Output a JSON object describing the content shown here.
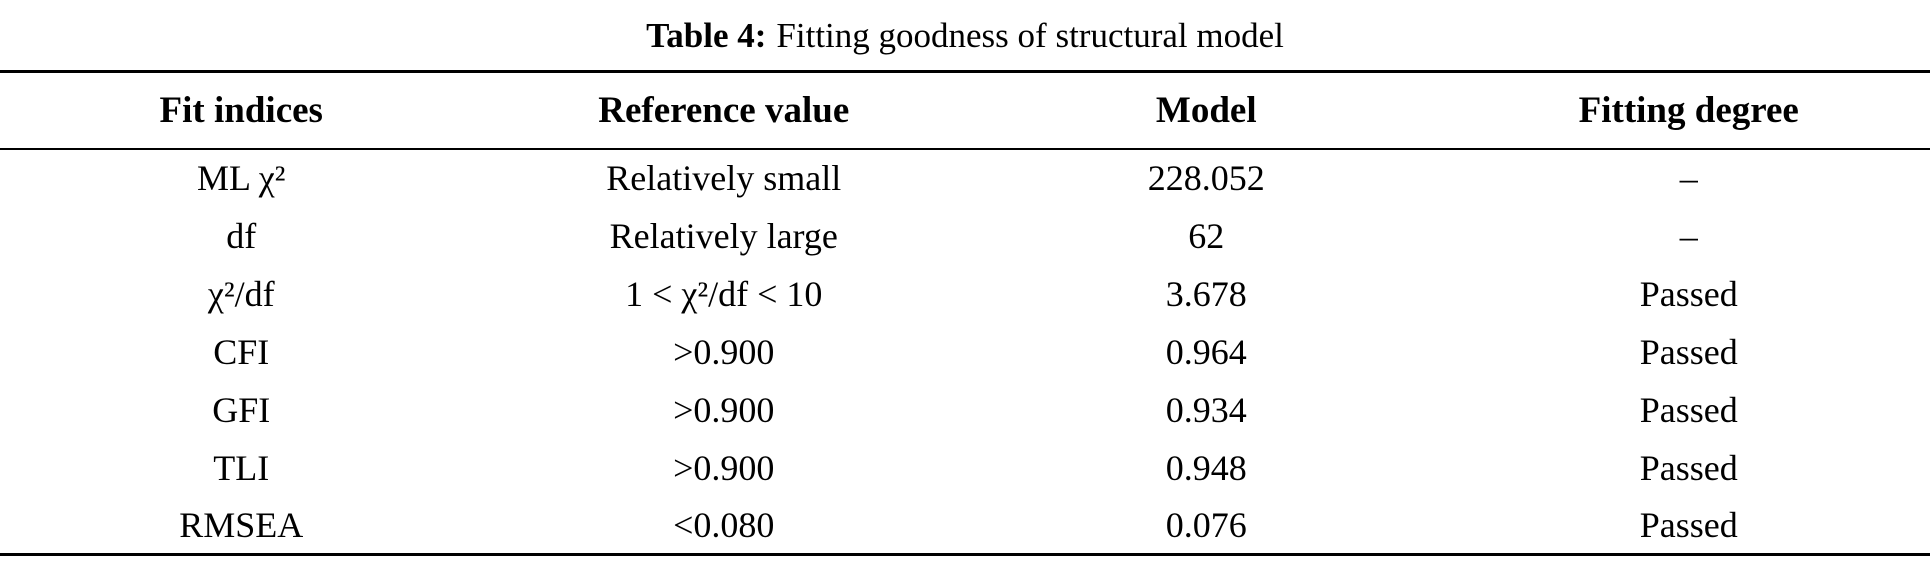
{
  "caption": {
    "label": "Table 4:",
    "title": "Fitting goodness of structural model"
  },
  "table": {
    "columns": [
      "Fit indices",
      "Reference value",
      "Model",
      "Fitting degree"
    ],
    "rows": [
      {
        "fit_index": "ML χ²",
        "reference_value": "Relatively small",
        "model": "228.052",
        "fitting_degree": "–"
      },
      {
        "fit_index": "df",
        "reference_value": "Relatively large",
        "model": "62",
        "fitting_degree": "–"
      },
      {
        "fit_index": "χ²/df",
        "reference_value": "1 < χ²/df < 10",
        "model": "3.678",
        "fitting_degree": "Passed"
      },
      {
        "fit_index": "CFI",
        "reference_value": ">0.900",
        "model": "0.964",
        "fitting_degree": "Passed"
      },
      {
        "fit_index": "GFI",
        "reference_value": ">0.900",
        "model": "0.934",
        "fitting_degree": "Passed"
      },
      {
        "fit_index": "TLI",
        "reference_value": ">0.900",
        "model": "0.948",
        "fitting_degree": "Passed"
      },
      {
        "fit_index": "RMSEA",
        "reference_value": "<0.080",
        "model": "0.076",
        "fitting_degree": "Passed"
      }
    ]
  },
  "colors": {
    "background": "#ffffff",
    "text": "#000000",
    "rule": "#000000"
  }
}
